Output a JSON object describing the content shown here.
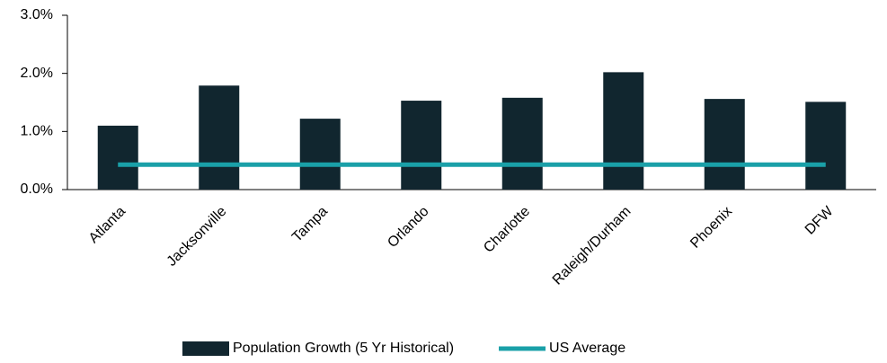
{
  "chart_data": {
    "type": "bar",
    "categories": [
      "Atlanta",
      "Jacksonville",
      "Tampa",
      "Orlando",
      "Charlotte",
      "Raleigh/Durham",
      "Phoenix",
      "DFW"
    ],
    "series": [
      {
        "name": "Population Growth (5 Yr Historical)",
        "color": "#11262f",
        "type": "bar",
        "values": [
          1.1,
          1.79,
          1.22,
          1.53,
          1.58,
          2.02,
          1.56,
          1.51
        ]
      },
      {
        "name": "US Average",
        "color": "#1aa0a8",
        "type": "line",
        "values": [
          0.43,
          0.43,
          0.43,
          0.43,
          0.43,
          0.43,
          0.43,
          0.43
        ]
      }
    ],
    "ylim": [
      0,
      3
    ],
    "yticks": [
      {
        "value": 0,
        "label": "0.0%"
      },
      {
        "value": 1,
        "label": "1.0%"
      },
      {
        "value": 2,
        "label": "2.0%"
      },
      {
        "value": 3,
        "label": "3.0%"
      }
    ],
    "grid": false,
    "legend": "bottom"
  }
}
